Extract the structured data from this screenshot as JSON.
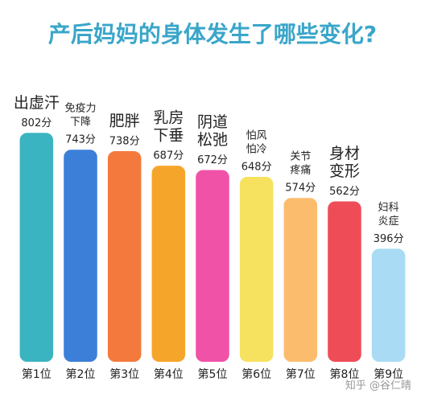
{
  "chart_data": {
    "type": "bar",
    "title": "产后妈妈的身体发生了哪些变化?",
    "categories": [
      "第1位",
      "第2位",
      "第3位",
      "第4位",
      "第5位",
      "第6位",
      "第7位",
      "第8位",
      "第9位"
    ],
    "names": [
      [
        "出虚汗"
      ],
      [
        "免疫力",
        "下降"
      ],
      [
        "肥胖"
      ],
      [
        "乳房",
        "下垂"
      ],
      [
        "阴道",
        "松弛"
      ],
      [
        "怕风",
        "怕冷"
      ],
      [
        "关节",
        "疼痛"
      ],
      [
        "身材",
        "变形"
      ],
      [
        "妇科",
        "炎症"
      ]
    ],
    "emphasized": [
      true,
      false,
      true,
      true,
      true,
      false,
      false,
      true,
      false
    ],
    "values": [
      802,
      743,
      738,
      687,
      672,
      648,
      574,
      562,
      396
    ],
    "value_labels": [
      "802分",
      "743分",
      "738分",
      "687分",
      "672分",
      "648分",
      "574分",
      "562分",
      "396分"
    ],
    "colors": [
      "#3bb4c1",
      "#3b7fd8",
      "#f37a3c",
      "#f5a62a",
      "#f052a8",
      "#f6e25e",
      "#fbbd6d",
      "#ee4d58",
      "#a9dcf4"
    ],
    "ylim": [
      0,
      1000
    ],
    "watermark": "知乎 @谷仁晴"
  }
}
